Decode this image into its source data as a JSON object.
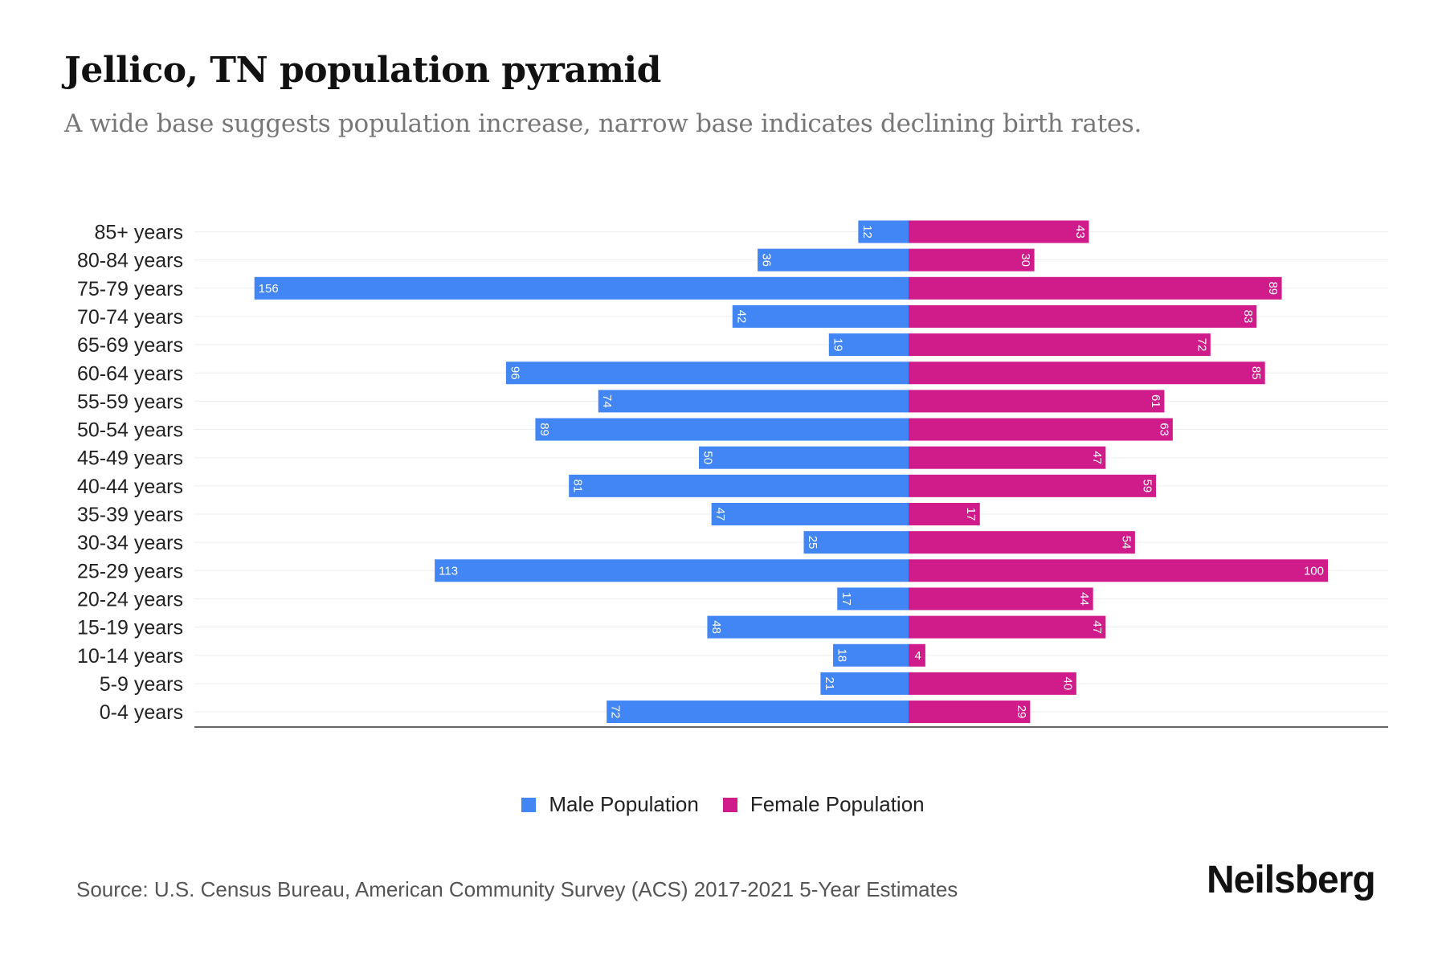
{
  "title": "Jellico, TN population pyramid",
  "subtitle": "A wide base suggests population increase, narrow base indicates declining birth rates.",
  "source": "Source: U.S. Census Bureau, American Community Survey (ACS) 2017-2021 5-Year Estimates",
  "logo": "Neilsberg",
  "colors": {
    "male": "#4285f4",
    "female": "#d01c8b"
  },
  "chart_data": {
    "type": "bar",
    "orientation": "horizontal-pyramid",
    "title": "Jellico, TN population pyramid",
    "categories": [
      "85+ years",
      "80-84 years",
      "75-79 years",
      "70-74 years",
      "65-69 years",
      "60-64 years",
      "55-59 years",
      "50-54 years",
      "45-49 years",
      "40-44 years",
      "35-39 years",
      "30-34 years",
      "25-29 years",
      "20-24 years",
      "15-19 years",
      "10-14 years",
      "5-9 years",
      "0-4 years"
    ],
    "series": [
      {
        "name": "Male Population",
        "values": [
          12,
          36,
          156,
          42,
          19,
          96,
          74,
          89,
          50,
          81,
          47,
          25,
          113,
          17,
          48,
          18,
          21,
          72
        ]
      },
      {
        "name": "Female Population",
        "values": [
          43,
          30,
          89,
          83,
          72,
          85,
          61,
          63,
          47,
          59,
          17,
          54,
          100,
          44,
          47,
          4,
          40,
          29
        ]
      }
    ],
    "xlim": [
      -170,
      115
    ],
    "grid": true,
    "legend": "bottom-center"
  }
}
